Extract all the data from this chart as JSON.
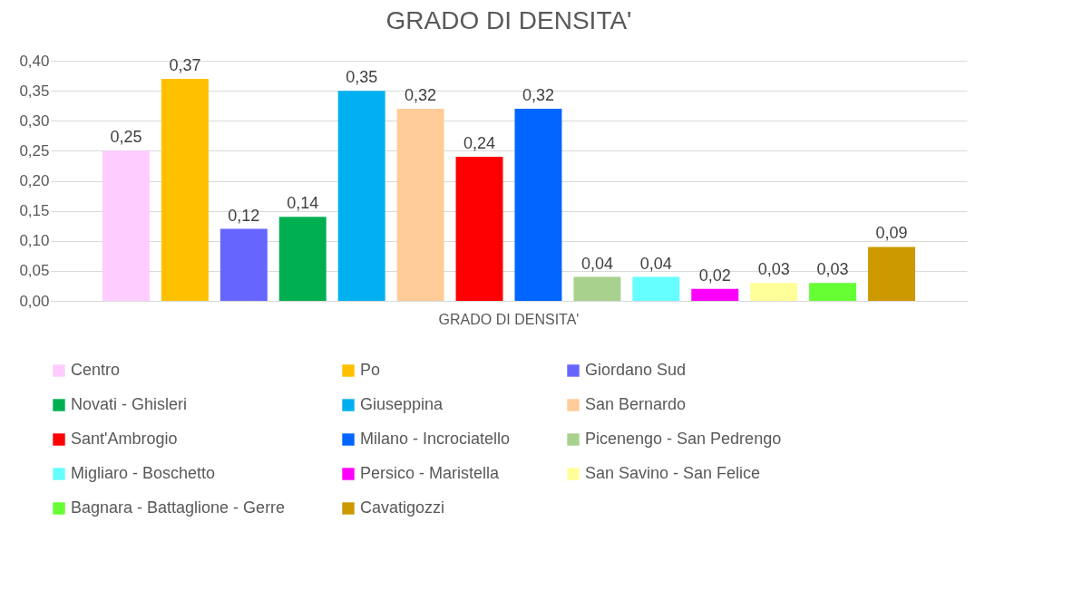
{
  "chart_data": {
    "type": "bar",
    "title": "GRADO DI DENSITA'",
    "categories": [
      "GRADO DI DENSITA'"
    ],
    "series": [
      {
        "name": "Centro",
        "color": "#ffccff",
        "values": [
          0.25
        ],
        "value_labels": [
          "0,25"
        ]
      },
      {
        "name": "Po",
        "color": "#ffc000",
        "values": [
          0.37
        ],
        "value_labels": [
          "0,37"
        ]
      },
      {
        "name": "Giordano Sud",
        "color": "#6666ff",
        "values": [
          0.12
        ],
        "value_labels": [
          "0,12"
        ]
      },
      {
        "name": "Novati - Ghisleri",
        "color": "#00b050",
        "values": [
          0.14
        ],
        "value_labels": [
          "0,14"
        ]
      },
      {
        "name": "Giuseppina",
        "color": "#00b0f0",
        "values": [
          0.35
        ],
        "value_labels": [
          "0,35"
        ]
      },
      {
        "name": "San Bernardo",
        "color": "#ffcc99",
        "values": [
          0.32
        ],
        "value_labels": [
          "0,32"
        ]
      },
      {
        "name": "Sant'Ambrogio",
        "color": "#ff0000",
        "values": [
          0.24
        ],
        "value_labels": [
          "0,24"
        ]
      },
      {
        "name": "Milano - Incrociatello",
        "color": "#0066ff",
        "values": [
          0.32
        ],
        "value_labels": [
          "0,32"
        ]
      },
      {
        "name": "Picenengo - San Pedrengo",
        "color": "#a9d18e",
        "values": [
          0.04
        ],
        "value_labels": [
          "0,04"
        ]
      },
      {
        "name": "Migliaro - Boschetto",
        "color": "#66ffff",
        "values": [
          0.04
        ],
        "value_labels": [
          "0,04"
        ]
      },
      {
        "name": "Persico - Maristella",
        "color": "#ff00ff",
        "values": [
          0.02
        ],
        "value_labels": [
          "0,02"
        ]
      },
      {
        "name": "San Savino - San Felice",
        "color": "#ffff99",
        "values": [
          0.03
        ],
        "value_labels": [
          "0,03"
        ]
      },
      {
        "name": "Bagnara - Battaglione - Gerre",
        "color": "#66ff33",
        "values": [
          0.03
        ],
        "value_labels": [
          "0,03"
        ]
      },
      {
        "name": "Cavatigozzi",
        "color": "#cc9900",
        "values": [
          0.09
        ],
        "value_labels": [
          "0,09"
        ]
      }
    ],
    "ylim": [
      0,
      0.4
    ],
    "yticks": [
      {
        "value": 0,
        "label": "0,00"
      },
      {
        "value": 0.05,
        "label": "0,05"
      },
      {
        "value": 0.1,
        "label": "0,10"
      },
      {
        "value": 0.15,
        "label": "0,15"
      },
      {
        "value": 0.2,
        "label": "0,20"
      },
      {
        "value": 0.25,
        "label": "0,25"
      },
      {
        "value": 0.3,
        "label": "0,30"
      },
      {
        "value": 0.35,
        "label": "0,35"
      },
      {
        "value": 0.4,
        "label": "0,40"
      }
    ],
    "grid": "y",
    "legend": "bottom"
  }
}
